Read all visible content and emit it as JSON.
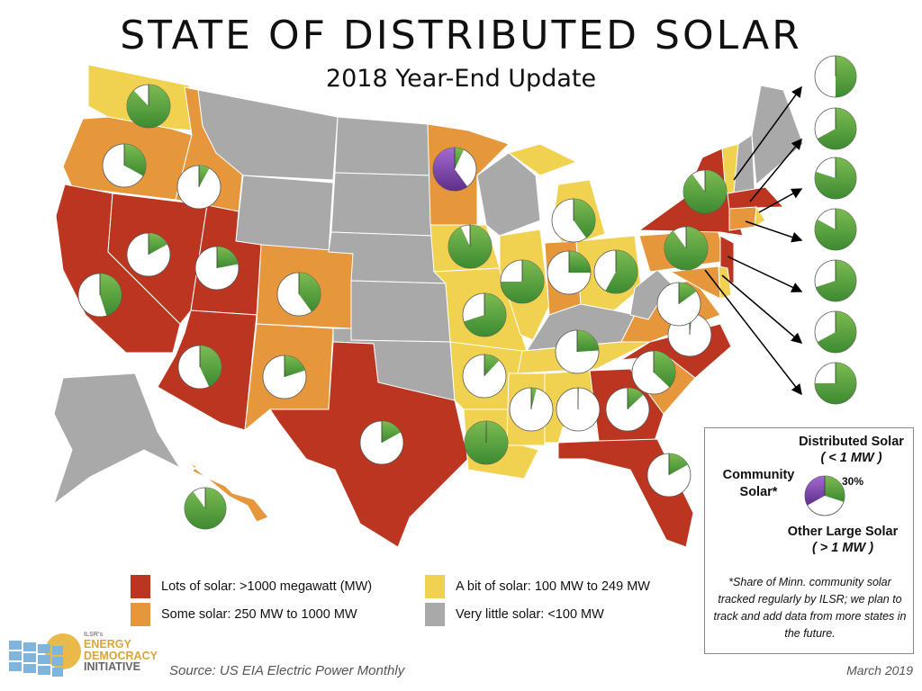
{
  "title": "STATE OF DISTRIBUTED SOLAR",
  "subtitle": "2018 Year-End Update",
  "colors": {
    "lots": "#bb3520",
    "some": "#e6963b",
    "bit": "#f0d150",
    "little": "#a8a9a8",
    "distributed": "#5aa040",
    "community": "#8c4fb8",
    "other": "#ffffff"
  },
  "legend": [
    {
      "category": "lots",
      "label": "Lots of solar: >1000 megawatt (MW)"
    },
    {
      "category": "bit",
      "label": "A bit of solar: 100 MW to 249 MW"
    },
    {
      "category": "some",
      "label": "Some solar: 250 MW to 1000 MW"
    },
    {
      "category": "little",
      "label": "Very little solar: <100 MW"
    }
  ],
  "key": {
    "distributed": "Distributed Solar",
    "distributed_sub": "( < 1 MW )",
    "community": "Community Solar*",
    "other": "Other Large Solar",
    "other_sub": "( > 1 MW )",
    "sample_pct": "30%",
    "sample": {
      "distributed": 0.3,
      "other": 0.37,
      "community": 0.33
    },
    "note": "*Share of Minn. community solar tracked regularly by ILSR; we plan to track and add data from more states in the future."
  },
  "states": {
    "WA": {
      "category": "bit",
      "distributed_share": 0.88
    },
    "OR": {
      "category": "some",
      "distributed_share": 0.33
    },
    "CA": {
      "category": "lots",
      "distributed_share": 0.45
    },
    "NV": {
      "category": "lots",
      "distributed_share": 0.17
    },
    "ID": {
      "category": "some",
      "distributed_share": 0.08
    },
    "MT": {
      "category": "little"
    },
    "WY": {
      "category": "little"
    },
    "UT": {
      "category": "lots",
      "distributed_share": 0.22
    },
    "CO": {
      "category": "some",
      "distributed_share": 0.4
    },
    "AZ": {
      "category": "lots",
      "distributed_share": 0.43
    },
    "NM": {
      "category": "some",
      "distributed_share": 0.2
    },
    "ND": {
      "category": "little"
    },
    "SD": {
      "category": "little"
    },
    "NE": {
      "category": "little"
    },
    "KS": {
      "category": "little"
    },
    "OK": {
      "category": "little"
    },
    "TX": {
      "category": "lots",
      "distributed_share": 0.17
    },
    "MN": {
      "category": "some",
      "distributed_share": 0.07,
      "community_share": 0.6
    },
    "IA": {
      "category": "bit",
      "distributed_share": 0.93
    },
    "MO": {
      "category": "bit",
      "distributed_share": 0.7
    },
    "AR": {
      "category": "bit",
      "distributed_share": 0.12
    },
    "LA": {
      "category": "bit",
      "distributed_share": 0.995
    },
    "WI": {
      "category": "little"
    },
    "IL": {
      "category": "bit",
      "distributed_share": 0.75
    },
    "MI": {
      "category": "bit",
      "distributed_share": 0.4
    },
    "IN": {
      "category": "some",
      "distributed_share": 0.25
    },
    "OH": {
      "category": "bit",
      "distributed_share": 0.58
    },
    "KY": {
      "category": "little"
    },
    "TN": {
      "category": "bit",
      "distributed_share": 0.24
    },
    "MS": {
      "category": "bit",
      "distributed_share": 0.04
    },
    "AL": {
      "category": "bit",
      "distributed_share": 0.005
    },
    "GA": {
      "category": "lots",
      "distributed_share": 0.13
    },
    "FL": {
      "category": "lots",
      "distributed_share": 0.17
    },
    "SC": {
      "category": "some",
      "distributed_share": 0.37
    },
    "NC": {
      "category": "lots",
      "distributed_share": 0.02
    },
    "VA": {
      "category": "some",
      "distributed_share": 0.15
    },
    "WV": {
      "category": "little"
    },
    "PA": {
      "category": "some",
      "distributed_share": 0.9
    },
    "NY": {
      "category": "lots",
      "distributed_share": 0.9
    },
    "NJ": {
      "category": "lots",
      "distributed_share": 0.7
    },
    "MD": {
      "category": "some",
      "distributed_share": 0.75
    },
    "DE": {
      "category": "bit",
      "distributed_share": 0.67
    },
    "VT": {
      "category": "bit",
      "distributed_share": 0.5
    },
    "NH": {
      "category": "little"
    },
    "ME": {
      "category": "little"
    },
    "MA": {
      "category": "lots",
      "distributed_share": 0.67
    },
    "CT": {
      "category": "some",
      "distributed_share": 0.83
    },
    "RI": {
      "category": "bit",
      "distributed_share": 0.8
    },
    "AK": {
      "category": "little"
    },
    "HI": {
      "category": "some",
      "distributed_share": 0.9
    }
  },
  "logo": {
    "small": "ILSR's",
    "line1": "ENERGY",
    "line2": "DEMOCRACY",
    "line3": "INITIATIVE"
  },
  "source": "Source: US EIA Electric Power Monthly",
  "date": "March 2019"
}
